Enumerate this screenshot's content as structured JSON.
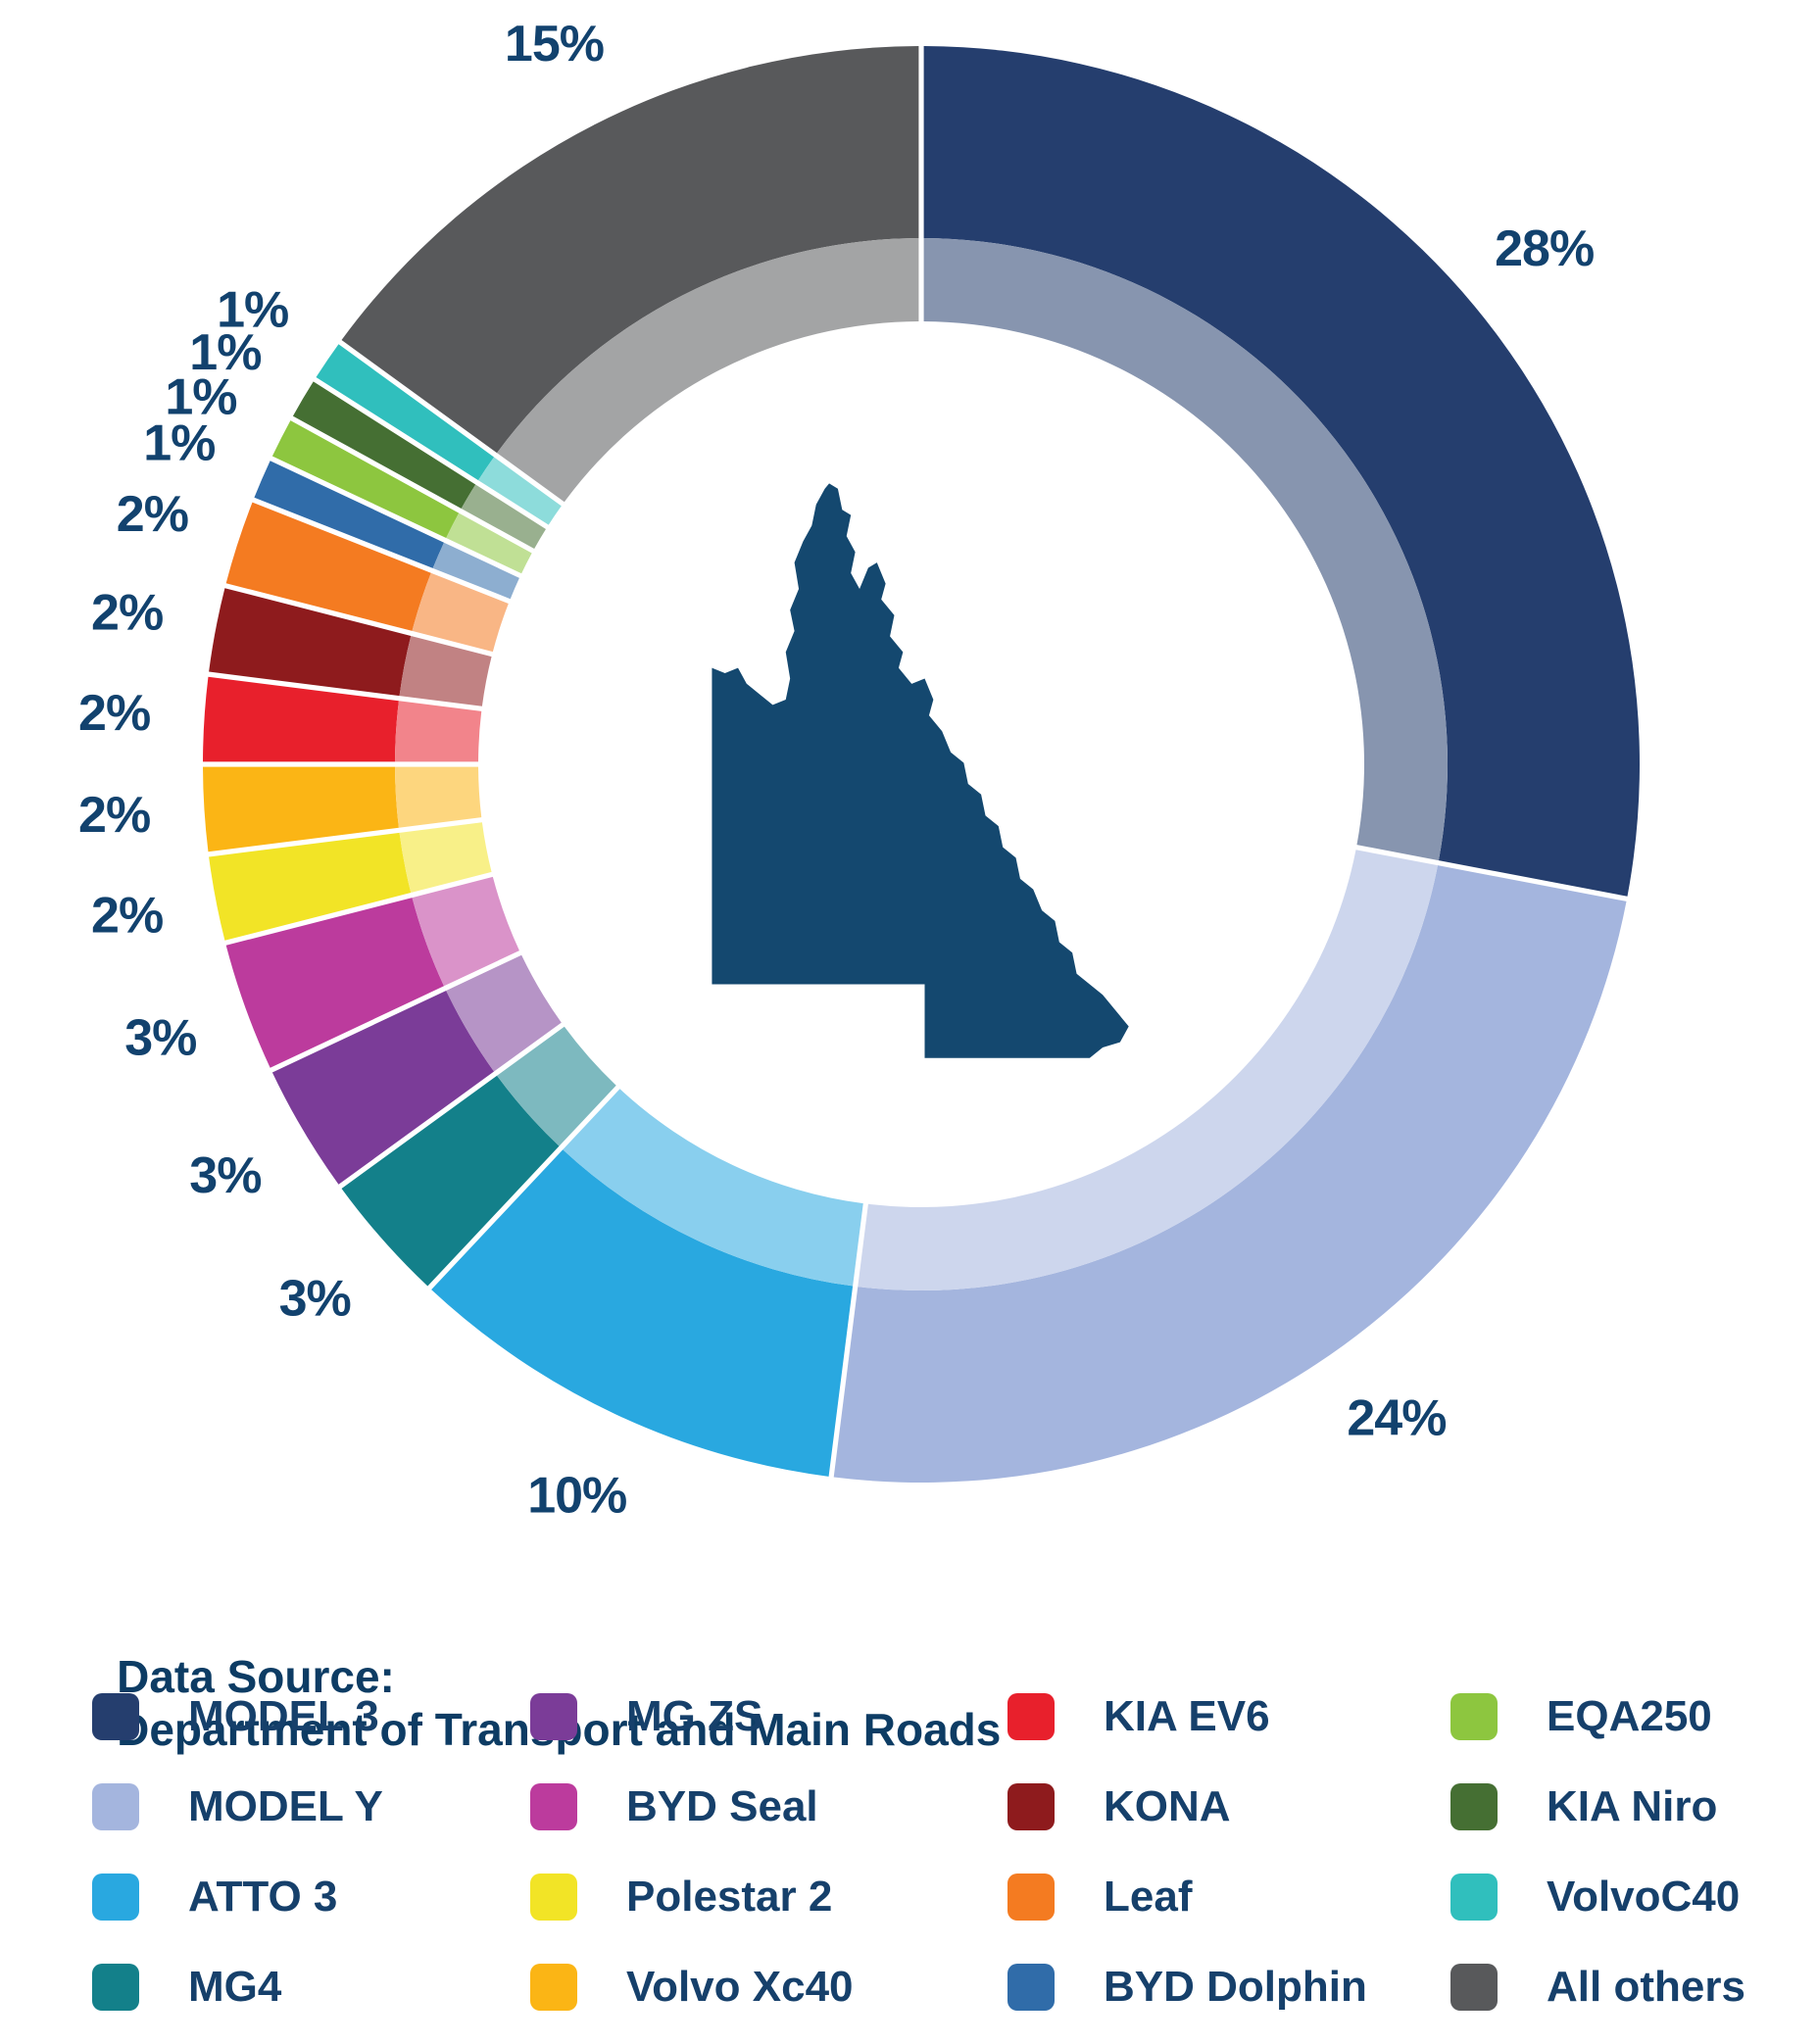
{
  "data_source": {
    "label": "Data Source:",
    "value": "Department of Transport and Main Roads"
  },
  "chart_data": {
    "type": "donut",
    "units": "percent of registrations",
    "direction": "clockwise",
    "start_angle_deg": 0,
    "center_graphic": "queensland-silhouette",
    "ring_style": "outer vivid ring with inner muted echo ring",
    "label_color": "#12426e",
    "map_color": "#14486f",
    "segments": [
      {
        "label": "MODEL 3",
        "value": 28,
        "display": "28%",
        "color": "#253e6e"
      },
      {
        "label": "MODEL Y",
        "value": 24,
        "display": "24%",
        "color": "#a4b5de"
      },
      {
        "label": "ATTO 3",
        "value": 10,
        "display": "10%",
        "color": "#29a8e0"
      },
      {
        "label": "MG4",
        "value": 3,
        "display": "3%",
        "color": "#13808a"
      },
      {
        "label": "MG ZS",
        "value": 3,
        "display": "3%",
        "color": "#7b3c98"
      },
      {
        "label": "BYD Seal",
        "value": 3,
        "display": "3%",
        "color": "#bc3b9d"
      },
      {
        "label": "Polestar 2",
        "value": 2,
        "display": "2%",
        "color": "#f2e426"
      },
      {
        "label": "Volvo Xc40",
        "value": 2,
        "display": "2%",
        "color": "#fbb515"
      },
      {
        "label": "KIA EV6",
        "value": 2,
        "display": "2%",
        "color": "#e8202c"
      },
      {
        "label": "KONA",
        "value": 2,
        "display": "2%",
        "color": "#8e1b1d"
      },
      {
        "label": "Leaf",
        "value": 2,
        "display": "2%",
        "color": "#f47b21"
      },
      {
        "label": "BYD Dolphin",
        "value": 1,
        "display": "1%",
        "color": "#306ca9"
      },
      {
        "label": "EQA250",
        "value": 1,
        "display": "1%",
        "color": "#8dc63f"
      },
      {
        "label": "KIA Niro",
        "value": 1,
        "display": "1%",
        "color": "#456f33"
      },
      {
        "label": "VolvoC40",
        "value": 1,
        "display": "1%",
        "color": "#30bfbd"
      },
      {
        "label": "All others",
        "value": 15,
        "display": "15%",
        "color": "#58595b"
      }
    ],
    "legend_order": [
      0,
      4,
      8,
      12,
      1,
      5,
      9,
      13,
      2,
      6,
      10,
      14,
      3,
      7,
      11,
      15
    ],
    "legend_position": "bottom"
  }
}
